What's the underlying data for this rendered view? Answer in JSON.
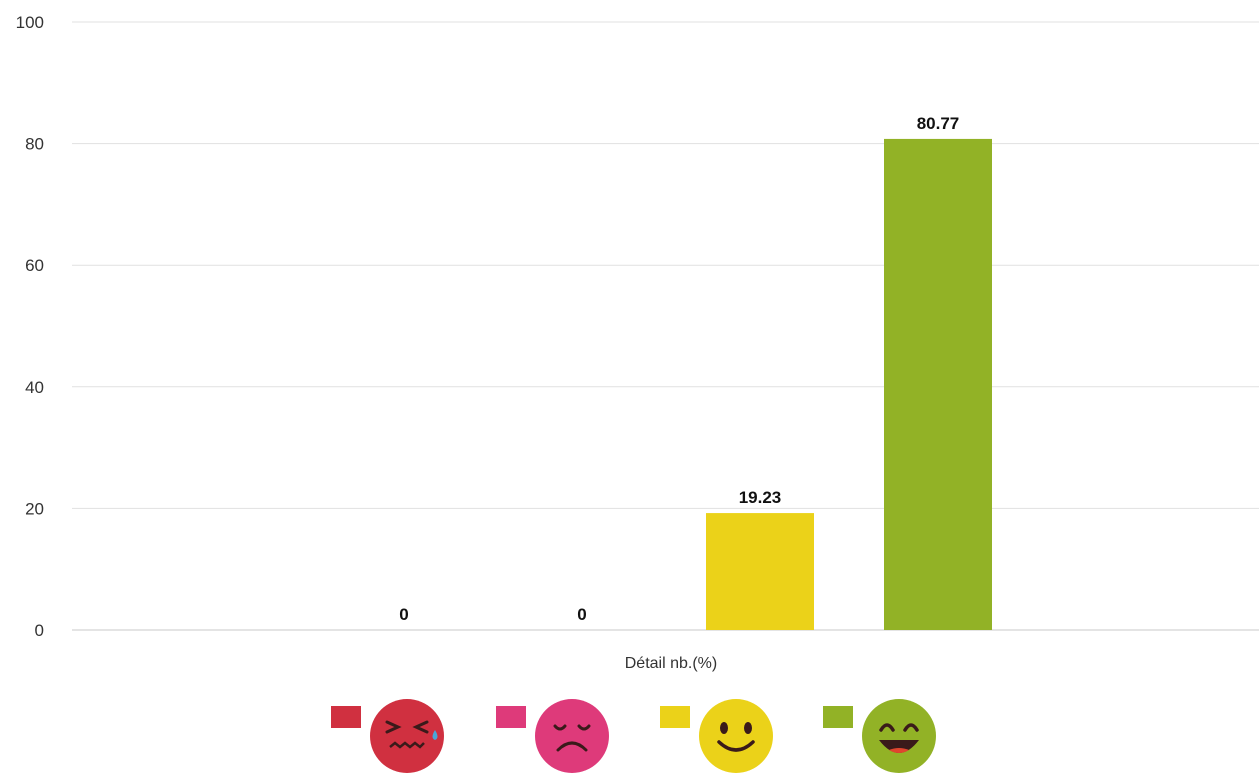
{
  "chart_data": {
    "type": "bar",
    "xlabel": "Détail nb.(%)",
    "ylabel": "",
    "ylim": [
      0,
      100
    ],
    "yticks": [
      0,
      20,
      40,
      60,
      80,
      100
    ],
    "grid": true,
    "legend_position": "bottom",
    "series": [
      {
        "icon": "crying-face-icon",
        "values": [
          0
        ],
        "label": "0",
        "color": "#d03040"
      },
      {
        "icon": "sad-face-icon",
        "values": [
          0
        ],
        "label": "0",
        "color": "#de3a7a"
      },
      {
        "icon": "smiling-face-icon",
        "values": [
          19.23
        ],
        "label": "19.23",
        "color": "#ebd219"
      },
      {
        "icon": "laughing-face-icon",
        "values": [
          80.77
        ],
        "label": "80.77",
        "color": "#92b226"
      }
    ]
  }
}
